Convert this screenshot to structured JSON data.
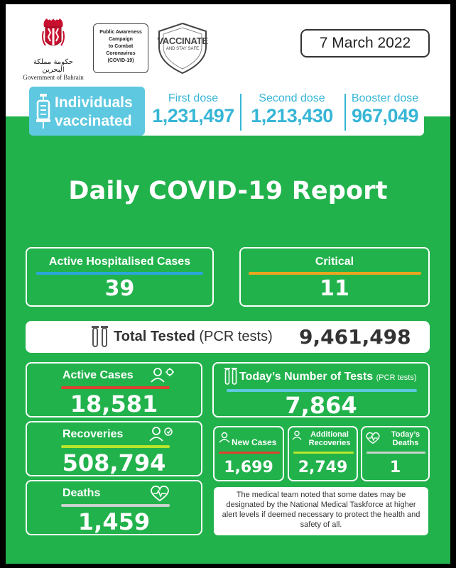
{
  "header": {
    "govt_arabic": "حكومة مملكة البحرين",
    "govt_english": "Government of Bahrain",
    "campaign_lines": [
      "Public Awareness",
      "Campaign",
      "to Combat",
      "Coronavirus",
      "(COVID-19)"
    ],
    "vaccinate_title": "VACCINATE",
    "vaccinate_sub": "AND STAY SAFE",
    "date": "7 March 2022"
  },
  "vaccination": {
    "title_line1": "Individuals",
    "title_line2": "vaccinated",
    "doses": [
      {
        "label": "First dose",
        "value": "1,231,497"
      },
      {
        "label": "Second dose",
        "value": "1,213,430"
      },
      {
        "label": "Booster dose",
        "value": "967,049"
      }
    ]
  },
  "report_title": "Daily COVID-19 Report",
  "hospital": {
    "active_hosp_label": "Active Hospitalised Cases",
    "active_hosp_value": "39",
    "critical_label": "Critical",
    "critical_value": "11"
  },
  "tested": {
    "label": "Total Tested",
    "sub": "(PCR tests)",
    "value": "9,461,498"
  },
  "stats": {
    "active_cases_label": "Active Cases",
    "active_cases_value": "18,581",
    "recoveries_label": "Recoveries",
    "recoveries_value": "508,794",
    "deaths_label": "Deaths",
    "deaths_value": "1,459"
  },
  "tests_today": {
    "label": "Today’s Number of Tests",
    "sub": "(PCR tests)",
    "value": "7,864"
  },
  "daily": {
    "new_cases_label": "New Cases",
    "new_cases_value": "1,699",
    "add_recov_label1": "Additional",
    "add_recov_label2": "Recoveries",
    "add_recov_value": "2,749",
    "today_deaths_label1": "Today’s",
    "today_deaths_label2": "Deaths",
    "today_deaths_value": "1"
  },
  "note": "The medical team noted that some dates may be designated by the National Medical Taskforce at higher alert levels if deemed necessary to protect the health and safety of all.",
  "colors": {
    "green": "#22b24c",
    "cyan": "#5ec8e0",
    "blue_bar": "#2aa7d8",
    "orange_bar": "#e8a520",
    "red_bar": "#e0402f",
    "lime_bar": "#b8e62a",
    "grey_bar": "#c9d2cc"
  }
}
